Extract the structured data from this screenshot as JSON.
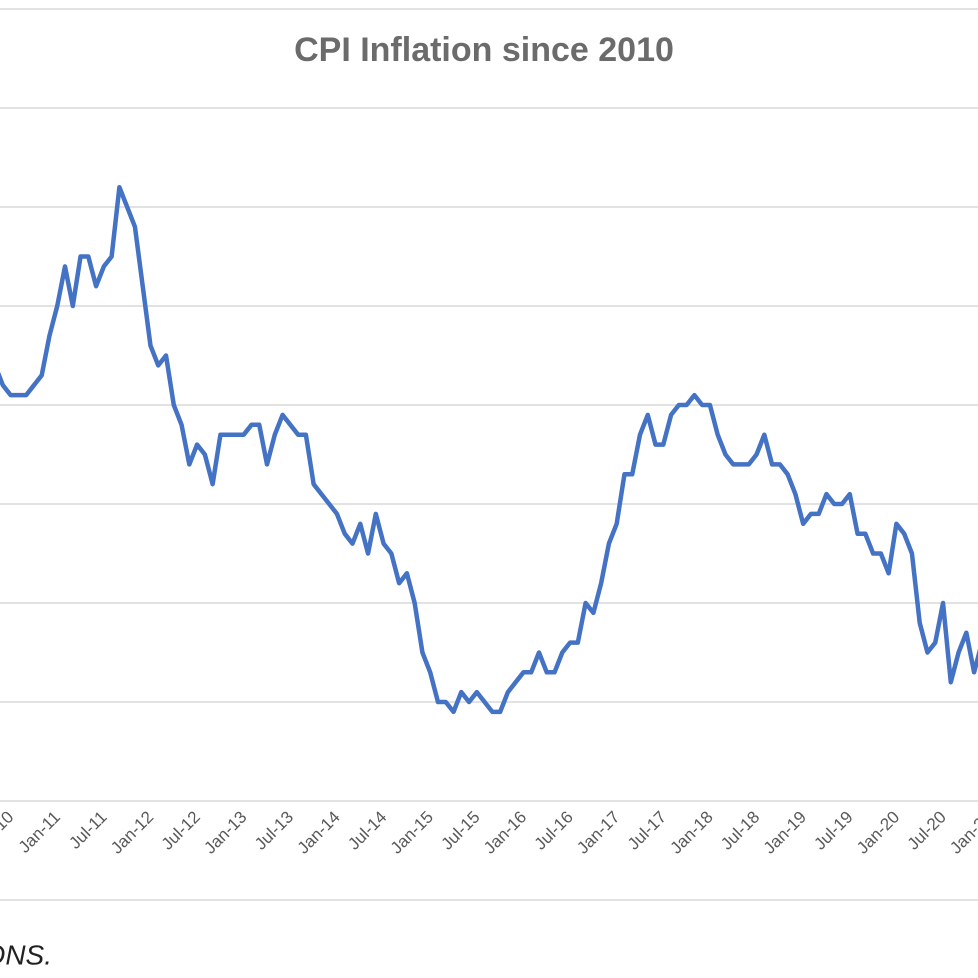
{
  "chart_data": {
    "type": "line",
    "title": "CPI Inflation since 2010",
    "source": "Source: ONS.",
    "categories": [
      "Jan-10",
      null,
      null,
      null,
      null,
      null,
      "Jul-10",
      null,
      null,
      null,
      null,
      null,
      "Jan-11",
      null,
      null,
      null,
      null,
      null,
      "Jul-11",
      null,
      null,
      null,
      null,
      null,
      "Jan-12",
      null,
      null,
      null,
      null,
      null,
      "Jul-12",
      null,
      null,
      null,
      null,
      null,
      "Jan-13",
      null,
      null,
      null,
      null,
      null,
      "Jul-13",
      null,
      null,
      null,
      null,
      null,
      "Jan-14",
      null,
      null,
      null,
      null,
      null,
      "Jul-14",
      null,
      null,
      null,
      null,
      null,
      "Jan-15",
      null,
      null,
      null,
      null,
      null,
      "Jul-15",
      null,
      null,
      null,
      null,
      null,
      "Jan-16",
      null,
      null,
      null,
      null,
      null,
      "Jul-16",
      null,
      null,
      null,
      null,
      null,
      "Jan-17",
      null,
      null,
      null,
      null,
      null,
      "Jul-17",
      null,
      null,
      null,
      null,
      null,
      "Jan-18",
      null,
      null,
      null,
      null,
      null,
      "Jul-18",
      null,
      null,
      null,
      null,
      null,
      "Jan-19",
      null,
      null,
      null,
      null,
      null,
      "Jul-19",
      null,
      null,
      null,
      null,
      null,
      "Jan-20",
      null,
      null,
      null,
      null,
      null,
      "Jul-20",
      null,
      null,
      null,
      null,
      null,
      "Jan-21"
    ],
    "series": [
      {
        "name": "CPI",
        "color": "#4472c4",
        "values": [
          3.5,
          3.0,
          3.4,
          3.7,
          3.4,
          3.2,
          3.1,
          3.1,
          3.1,
          3.2,
          3.3,
          3.7,
          4.0,
          4.4,
          4.0,
          4.5,
          4.5,
          4.2,
          4.4,
          4.5,
          5.2,
          5.0,
          4.8,
          4.2,
          3.6,
          3.4,
          3.5,
          3.0,
          2.8,
          2.4,
          2.6,
          2.5,
          2.2,
          2.7,
          2.7,
          2.7,
          2.7,
          2.8,
          2.8,
          2.4,
          2.7,
          2.9,
          2.8,
          2.7,
          2.7,
          2.2,
          2.1,
          2.0,
          1.9,
          1.7,
          1.6,
          1.8,
          1.5,
          1.9,
          1.6,
          1.5,
          1.2,
          1.3,
          1.0,
          0.5,
          0.3,
          0.0,
          0.0,
          -0.1,
          0.1,
          0.0,
          0.1,
          0.0,
          -0.1,
          -0.1,
          0.1,
          0.2,
          0.3,
          0.3,
          0.5,
          0.3,
          0.3,
          0.5,
          0.6,
          0.6,
          1.0,
          0.9,
          1.2,
          1.6,
          1.8,
          2.3,
          2.3,
          2.7,
          2.9,
          2.6,
          2.6,
          2.9,
          3.0,
          3.0,
          3.1,
          3.0,
          3.0,
          2.7,
          2.5,
          2.4,
          2.4,
          2.4,
          2.5,
          2.7,
          2.4,
          2.4,
          2.3,
          2.1,
          1.8,
          1.9,
          1.9,
          2.1,
          2.0,
          2.0,
          2.1,
          1.7,
          1.7,
          1.5,
          1.5,
          1.3,
          1.8,
          1.7,
          1.5,
          0.8,
          0.5,
          0.6,
          1.0,
          0.2,
          0.5,
          0.7,
          0.3,
          0.6,
          0.7
        ]
      }
    ],
    "ylim": [
      -1,
      7
    ],
    "yticks": [
      -1,
      0,
      1,
      2,
      3,
      4,
      5,
      6,
      7
    ],
    "grid": true
  }
}
